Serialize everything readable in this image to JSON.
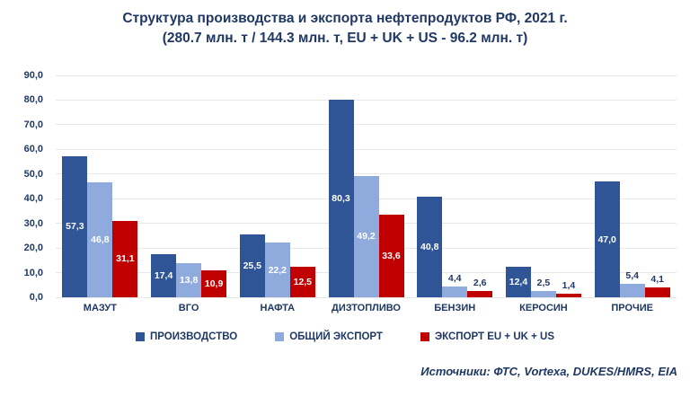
{
  "title": {
    "line1": "Структура производства и экспорта нефтепродуктов РФ, 2021 г.",
    "line2": "(280.7 млн. т  / 144.3 млн. т, EU + UK + US - 96.2 млн. т)"
  },
  "source": "Источники: ФТС, Vortexa, DUKES/HMRS, EIA",
  "colors": {
    "title_text": "#1F3864",
    "axis_text": "#1F3864",
    "gridline": "#E8E8E8",
    "background": "#FFFFFF",
    "production": "#2F5597",
    "total_export": "#8FAADC",
    "export_eu_uk_us": "#C00000"
  },
  "chart_data": {
    "type": "bar",
    "title": "Структура производства и экспорта нефтепродуктов РФ, 2021 г.",
    "subtitle": "(280.7 млн. т  / 144.3 млн. т, EU + UK + US - 96.2 млн. т)",
    "categories": [
      "МАЗУТ",
      "ВГО",
      "НАФТА",
      "ДИЗТОПЛИВО",
      "БЕНЗИН",
      "КЕРОСИН",
      "ПРОЧИЕ"
    ],
    "series": [
      {
        "name": "ПРОИЗВОДСТВО",
        "color": "#2F5597",
        "values": [
          57.3,
          17.4,
          25.5,
          80.3,
          40.8,
          12.4,
          47.0
        ]
      },
      {
        "name": "ОБЩИЙ ЭКСПОРТ",
        "color": "#8FAADC",
        "values": [
          46.8,
          13.8,
          22.2,
          49.2,
          4.4,
          2.5,
          5.4
        ]
      },
      {
        "name": "ЭКСПОРТ EU + UK + US",
        "color": "#C00000",
        "values": [
          31.1,
          10.9,
          12.5,
          33.6,
          2.6,
          1.4,
          4.1
        ]
      }
    ],
    "ylim": [
      0,
      90
    ],
    "ytick_step": 10,
    "ytick_labels": [
      "0,0",
      "10,0",
      "20,0",
      "30,0",
      "40,0",
      "50,0",
      "60,0",
      "70,0",
      "80,0",
      "90,0"
    ],
    "grid": true,
    "legend_position": "bottom",
    "value_label_rule": "comma decimal; white inside bar when value >= 10, navy above bar otherwise"
  }
}
